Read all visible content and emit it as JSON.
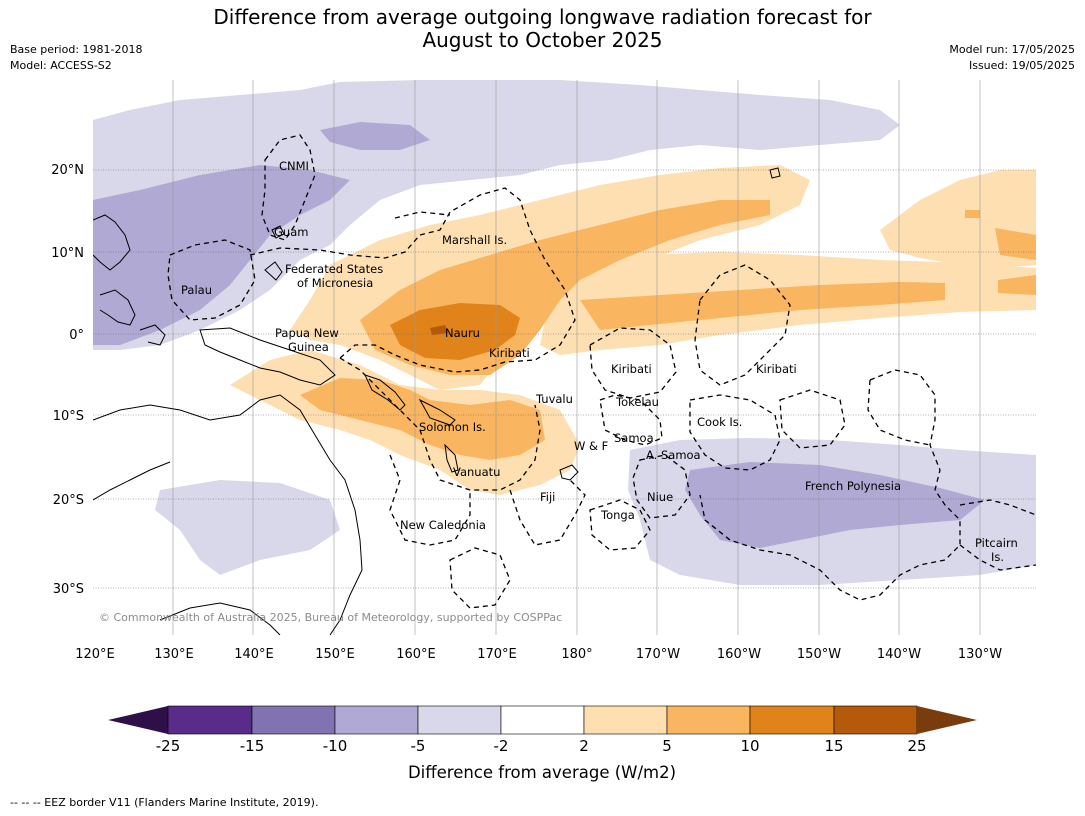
{
  "title": {
    "line1": "Difference from average outgoing longwave radiation forecast for",
    "line2": "August to October 2025"
  },
  "meta_left": {
    "base_period": "Base period: 1981-2018",
    "model": "Model: ACCESS-S2"
  },
  "meta_right": {
    "model_run": "Model run: 17/05/2025",
    "issued": "Issued: 19/05/2025"
  },
  "lon_labels": [
    "120°E",
    "130°E",
    "140°E",
    "150°E",
    "160°E",
    "170°E",
    "180°",
    "170°W",
    "160°W",
    "150°W",
    "140°W",
    "130°W"
  ],
  "lat_labels": [
    "20°N",
    "10°N",
    "0°",
    "10°S",
    "20°S",
    "30°S"
  ],
  "place_names": {
    "cnmi": "CNMI",
    "guam": "Guam",
    "marshall": "Marshall Is.",
    "fsm1": "Federated States",
    "fsm2": "of Micronesia",
    "palau": "Palau",
    "png1": "Papua New",
    "png2": "Guinea",
    "nauru": "Nauru",
    "kiribati_w": "Kiribati",
    "kiribati_c": "Kiribati",
    "kiribati_e": "Kiribati",
    "tuvalu": "Tuvalu",
    "tokelau": "Tokelau",
    "solomon": "Solomon Is.",
    "wf": "W & F",
    "samoa": "Samoa",
    "asamoa": "A. Samoa",
    "cook": "Cook Is.",
    "vanuatu": "Vanuatu",
    "fiji": "Fiji",
    "niue": "Niue",
    "french_polynesia": "French Polynesia",
    "tonga": "Tonga",
    "new_caledonia": "New Caledonia",
    "pitcairn1": "Pitcairn",
    "pitcairn2": "Is."
  },
  "copyright": "© Commonwealth of Australia 2025, Bureau of Meteorology, supported by COSPPac",
  "colorbar": {
    "ticks": [
      "-25",
      "-15",
      "-10",
      "-5",
      "-2",
      "2",
      "5",
      "10",
      "15",
      "25"
    ],
    "colors": [
      "#592c8a",
      "#8172b2",
      "#b0a9d3",
      "#d8d8ea",
      "#ffffff",
      "#fddfb1",
      "#f9b55f",
      "#e0831a",
      "#b55a0a"
    ],
    "extend_low_color": "#2e0f48",
    "extend_high_color": "#7a3b0d",
    "label": "Difference from average (W/m2)"
  },
  "footer": "--  --  -- EEZ border V11 (Flanders Marine Institute, 2019)."
}
